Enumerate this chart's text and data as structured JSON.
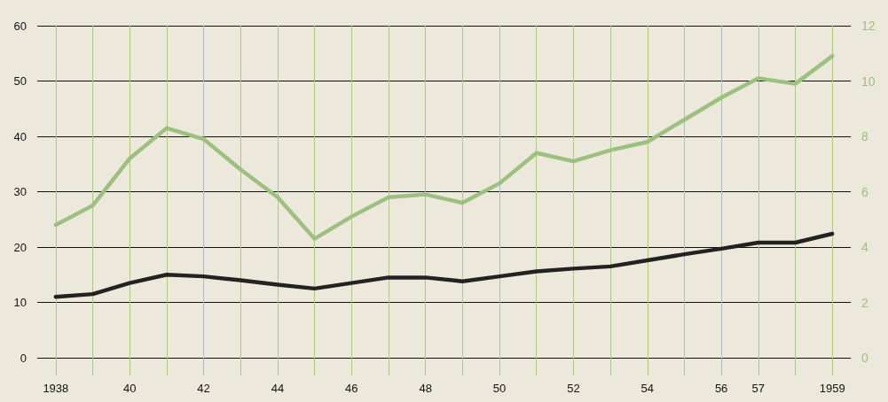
{
  "chart_data": {
    "type": "line",
    "x": [
      1938,
      1939,
      1940,
      1941,
      1942,
      1943,
      1944,
      1945,
      1946,
      1947,
      1948,
      1949,
      1950,
      1951,
      1952,
      1953,
      1954,
      1955,
      1956,
      1957,
      1958,
      1959
    ],
    "series": [
      {
        "color": "#9dbf7f",
        "axis": "y2",
        "values": [
          4.8,
          5.5,
          7.2,
          8.3,
          7.9,
          6.8,
          5.8,
          4.3,
          5.1,
          5.8,
          5.9,
          5.6,
          6.3,
          7.4,
          7.1,
          7.5,
          7.8,
          8.6,
          9.4,
          10.1,
          9.9,
          10.9
        ]
      },
      {
        "color": "#222222",
        "values": [
          11,
          11.5,
          13.5,
          15,
          14.7,
          14,
          13.2,
          12.5,
          13.5,
          14.5,
          14.5,
          13.8,
          14.7,
          15.6,
          16.1,
          16.5,
          17.6,
          18.7,
          19.7,
          20.8,
          20.8,
          22.4
        ]
      }
    ],
    "xlim": [
      1937.5,
      1959.5
    ],
    "xticks": [
      {
        "value": 1938,
        "label": "1938"
      },
      {
        "value": 1939,
        "label": null
      },
      {
        "value": 1940,
        "label": "40"
      },
      {
        "value": 1941,
        "label": null
      },
      {
        "value": 1942,
        "label": "42"
      },
      {
        "value": 1943,
        "label": null
      },
      {
        "value": 1944,
        "label": "44"
      },
      {
        "value": 1945,
        "label": null
      },
      {
        "value": 1946,
        "label": "46"
      },
      {
        "value": 1947,
        "label": null
      },
      {
        "value": 1948,
        "label": "48"
      },
      {
        "value": 1949,
        "label": null
      },
      {
        "value": 1950,
        "label": "50"
      },
      {
        "value": 1951,
        "label": null
      },
      {
        "value": 1952,
        "label": "52"
      },
      {
        "value": 1953,
        "label": null
      },
      {
        "value": 1954,
        "label": "54"
      },
      {
        "value": 1955,
        "label": null
      },
      {
        "value": 1956,
        "label": "56"
      },
      {
        "value": 1957,
        "label": "57"
      },
      {
        "value": 1958,
        "label": null
      },
      {
        "value": 1959,
        "label": "1959"
      }
    ],
    "ylim": [
      0,
      60
    ],
    "yticks": [
      0,
      10,
      20,
      30,
      40,
      50,
      60
    ],
    "y2lim": [
      0,
      12
    ],
    "y2ticks": [
      0,
      2,
      4,
      6,
      8,
      10,
      12
    ],
    "grid": true,
    "marker": "none",
    "line_style": "solid"
  }
}
